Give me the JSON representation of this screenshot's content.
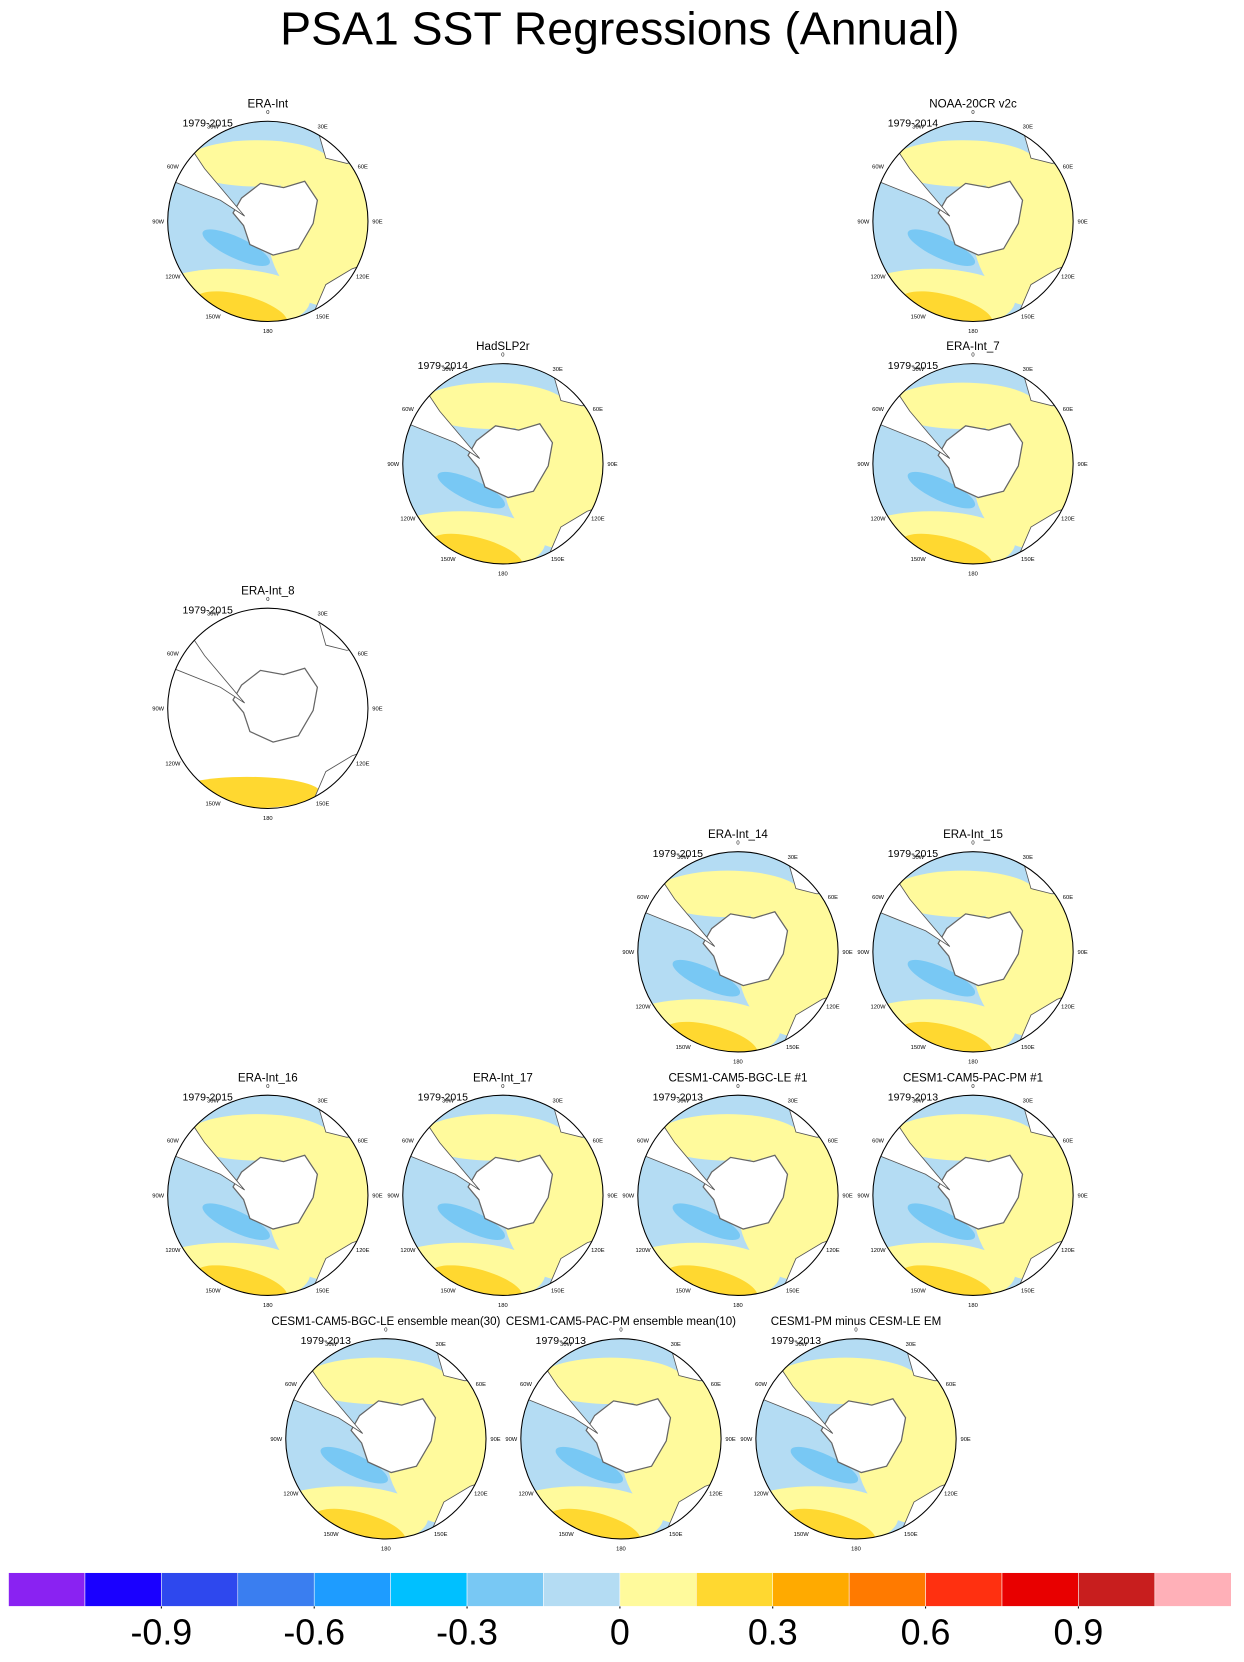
{
  "title": "PSA1 SST Regressions (Annual)",
  "lon_labels": [
    "0",
    "30E",
    "60E",
    "90E",
    "120E",
    "150E",
    "180",
    "150W",
    "120W",
    "90W",
    "60W",
    "30W"
  ],
  "panels": [
    {
      "title": "ERA-Int",
      "years": "1979-2015"
    },
    {
      "title": "NOAA-20CR v2c",
      "years": "1979-2014"
    },
    {
      "title": "HadSLP2r",
      "years": "1979-2014"
    },
    {
      "title": "ERA-Int_7",
      "years": "1979-2015"
    },
    {
      "title": "ERA-Int_8",
      "years": "1979-2015"
    },
    {
      "title": "ERA-Int_14",
      "years": "1979-2015"
    },
    {
      "title": "ERA-Int_15",
      "years": "1979-2015"
    },
    {
      "title": "ERA-Int_16",
      "years": "1979-2015"
    },
    {
      "title": "ERA-Int_17",
      "years": "1979-2015"
    },
    {
      "title": "CESM1-CAM5-BGC-LE #1",
      "years": "1979-2013"
    },
    {
      "title": "CESM1-CAM5-PAC-PM #1",
      "years": "1979-2013"
    },
    {
      "title": "CESM1-CAM5-BGC-LE ensemble mean(30)",
      "years": "1979-2013"
    },
    {
      "title": "CESM1-CAM5-PAC-PM ensemble mean(10)",
      "years": "1979-2013"
    },
    {
      "title": "CESM1-PM minus CESM-LE EM",
      "years": "1979-2013"
    }
  ],
  "colorbar": {
    "colors": [
      "#8a22f2",
      "#1a00ff",
      "#2e48ee",
      "#3a7ef0",
      "#1e9cff",
      "#00c0ff",
      "#78c8f4",
      "#b4dcf3",
      "#fffa9c",
      "#ffd830",
      "#ffaa00",
      "#ff7a00",
      "#ff3010",
      "#e80000",
      "#c81e1e",
      "#ffb0b8"
    ],
    "lim": [
      -1.2,
      1.2
    ],
    "ticks": [
      -0.9,
      -0.6,
      -0.3,
      0,
      0.3,
      0.6,
      0.9
    ]
  }
}
